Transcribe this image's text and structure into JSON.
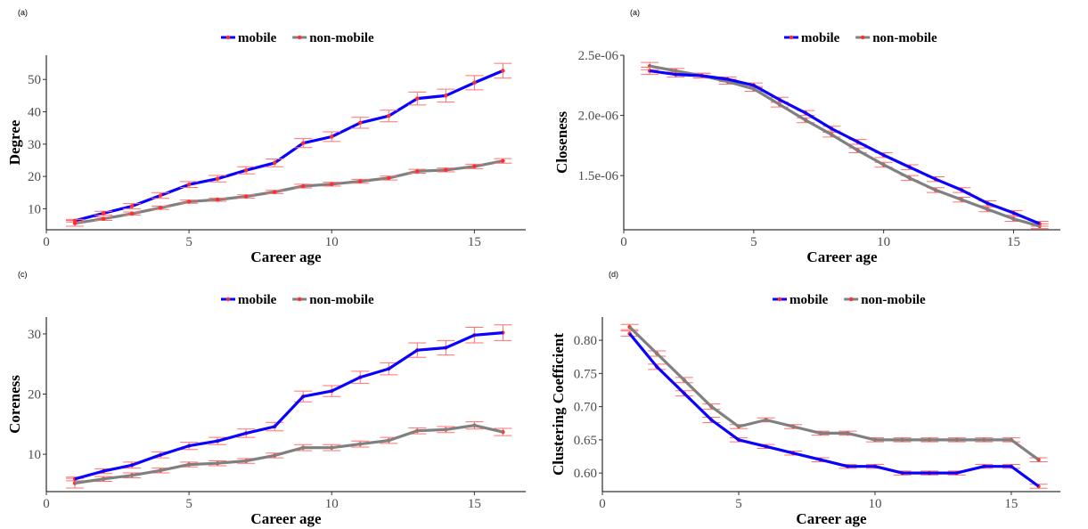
{
  "colors": {
    "mobile": "#0a00ff",
    "non_mobile": "#808080",
    "point": "#ff2d2d",
    "errorbar": "#ff7070"
  },
  "chart_data": [
    {
      "type": "line",
      "panel_label": "(a)",
      "xlabel": "Career age",
      "ylabel": "Degree",
      "x": [
        1,
        2,
        3,
        4,
        5,
        6,
        7,
        8,
        9,
        10,
        11,
        12,
        13,
        14,
        15,
        16
      ],
      "xlim": [
        0,
        16.8
      ],
      "ylim": [
        3.5,
        57.5
      ],
      "xticks": [
        0,
        5,
        10,
        15
      ],
      "xtick_labels": [
        "0",
        "5",
        "10",
        "15"
      ],
      "yticks": [
        10,
        20,
        30,
        40,
        50
      ],
      "ytick_labels": [
        "10",
        "20",
        "30",
        "40",
        "50"
      ],
      "legend_position": "top",
      "series": [
        {
          "name": "mobile",
          "values": [
            6.3,
            8.6,
            10.8,
            14.1,
            17.5,
            19.3,
            21.9,
            24.2,
            30.3,
            32.3,
            36.6,
            38.7,
            44.1,
            45.0,
            49.0,
            52.7
          ],
          "err": [
            0.4,
            0.6,
            0.8,
            0.9,
            0.9,
            1.0,
            1.1,
            1.2,
            1.4,
            1.5,
            1.7,
            1.8,
            2.0,
            2.0,
            2.2,
            2.3
          ]
        },
        {
          "name": "non-mobile",
          "values": [
            5.5,
            6.9,
            8.5,
            10.3,
            12.2,
            12.8,
            13.8,
            15.2,
            17.0,
            17.6,
            18.5,
            19.5,
            21.6,
            22.0,
            23.1,
            24.8
          ],
          "err": [
            0.9,
            0.5,
            0.5,
            0.5,
            0.5,
            0.5,
            0.5,
            0.5,
            0.6,
            0.6,
            0.6,
            0.6,
            0.6,
            0.6,
            0.7,
            0.7
          ]
        }
      ]
    },
    {
      "type": "line",
      "panel_label": "(a)",
      "xlabel": "Career age",
      "ylabel": "Closeness",
      "x": [
        1,
        2,
        3,
        4,
        5,
        6,
        7,
        8,
        9,
        10,
        11,
        12,
        13,
        14,
        15,
        16
      ],
      "xlim": [
        0,
        16.8
      ],
      "ylim": [
        1.05e-06,
        2.5e-06
      ],
      "xticks": [
        0,
        5,
        10,
        15
      ],
      "xtick_labels": [
        "0",
        "5",
        "10",
        "15"
      ],
      "yticks": [
        1.5e-06,
        2e-06,
        2.5e-06
      ],
      "ytick_labels": [
        "1.5e-06",
        "2.0e-06",
        "2.5e-06"
      ],
      "legend_position": "top",
      "series": [
        {
          "name": "mobile",
          "values": [
            2.37e-06,
            2.34e-06,
            2.33e-06,
            2.3e-06,
            2.25e-06,
            2.13e-06,
            2.02e-06,
            1.89e-06,
            1.78e-06,
            1.67e-06,
            1.57e-06,
            1.47e-06,
            1.38e-06,
            1.27e-06,
            1.19e-06,
            1.1e-06
          ],
          "err": [
            3e-08,
            2e-08,
            2e-08,
            2e-08,
            2e-08,
            2e-08,
            2e-08,
            2e-08,
            2e-08,
            2e-08,
            2e-08,
            2e-08,
            2e-08,
            2e-08,
            2e-08,
            2e-08
          ]
        },
        {
          "name": "non-mobile",
          "values": [
            2.41e-06,
            2.37e-06,
            2.33e-06,
            2.28e-06,
            2.22e-06,
            2.09e-06,
            1.96e-06,
            1.84e-06,
            1.71e-06,
            1.59e-06,
            1.48e-06,
            1.38e-06,
            1.3e-06,
            1.22e-06,
            1.14e-06,
            1.08e-06
          ],
          "err": [
            3e-08,
            2e-08,
            2e-08,
            2e-08,
            2e-08,
            2e-08,
            2e-08,
            2e-08,
            2e-08,
            2e-08,
            2e-08,
            2e-08,
            2e-08,
            2e-08,
            2e-08,
            2e-08
          ]
        }
      ]
    },
    {
      "type": "line",
      "panel_label": "(c)",
      "xlabel": "Career age",
      "ylabel": "Coreness",
      "x": [
        1,
        2,
        3,
        4,
        5,
        6,
        7,
        8,
        9,
        10,
        11,
        12,
        13,
        14,
        15,
        16
      ],
      "xlim": [
        0,
        16.8
      ],
      "ylim": [
        3.8,
        32.8
      ],
      "xticks": [
        0,
        5,
        10,
        15
      ],
      "xtick_labels": [
        "0",
        "5",
        "10",
        "15"
      ],
      "yticks": [
        10,
        20,
        30
      ],
      "ytick_labels": [
        "10",
        "20",
        "30"
      ],
      "legend_position": "top",
      "series": [
        {
          "name": "mobile",
          "values": [
            5.9,
            7.2,
            8.2,
            9.9,
            11.4,
            12.2,
            13.5,
            14.6,
            19.6,
            20.5,
            22.8,
            24.2,
            27.3,
            27.7,
            29.8,
            30.2
          ],
          "err": [
            0.3,
            0.4,
            0.5,
            0.5,
            0.6,
            0.6,
            0.7,
            0.7,
            0.9,
            0.9,
            1.0,
            1.0,
            1.2,
            1.2,
            1.3,
            1.3
          ]
        },
        {
          "name": "non-mobile",
          "values": [
            5.2,
            5.9,
            6.5,
            7.3,
            8.3,
            8.5,
            8.9,
            9.8,
            11.1,
            11.1,
            11.7,
            12.3,
            13.9,
            14.1,
            14.8,
            13.7
          ],
          "err": [
            0.8,
            0.4,
            0.4,
            0.4,
            0.4,
            0.4,
            0.4,
            0.4,
            0.5,
            0.5,
            0.5,
            0.5,
            0.5,
            0.5,
            0.6,
            0.6
          ]
        }
      ]
    },
    {
      "type": "line",
      "panel_label": "(d)",
      "xlabel": "Career age",
      "ylabel": "Clustering Coefficient",
      "x": [
        1,
        2,
        3,
        4,
        5,
        6,
        7,
        8,
        9,
        10,
        11,
        12,
        13,
        14,
        15,
        16
      ],
      "xlim": [
        0,
        16.8
      ],
      "ylim": [
        0.572,
        0.835
      ],
      "xticks": [
        0,
        5,
        10,
        15
      ],
      "xtick_labels": [
        "0",
        "5",
        "10",
        "15"
      ],
      "yticks": [
        0.6,
        0.65,
        0.7,
        0.75,
        0.8
      ],
      "ytick_labels": [
        "0.60",
        "0.65",
        "0.70",
        "0.75",
        "0.80"
      ],
      "legend_position": "top",
      "series": [
        {
          "name": "mobile",
          "values": [
            0.81,
            0.76,
            0.72,
            0.68,
            0.65,
            0.64,
            0.63,
            0.62,
            0.61,
            0.61,
            0.6,
            0.6,
            0.6,
            0.61,
            0.61,
            0.58
          ],
          "err": [
            0.004,
            0.004,
            0.004,
            0.004,
            0.003,
            0.003,
            0.003,
            0.003,
            0.003,
            0.003,
            0.003,
            0.003,
            0.003,
            0.003,
            0.003,
            0.003
          ]
        },
        {
          "name": "non-mobile",
          "values": [
            0.82,
            0.78,
            0.74,
            0.7,
            0.67,
            0.68,
            0.67,
            0.66,
            0.66,
            0.65,
            0.65,
            0.65,
            0.65,
            0.65,
            0.65,
            0.62
          ],
          "err": [
            0.004,
            0.004,
            0.004,
            0.004,
            0.003,
            0.003,
            0.003,
            0.003,
            0.003,
            0.003,
            0.003,
            0.003,
            0.003,
            0.003,
            0.003,
            0.003
          ]
        }
      ]
    }
  ]
}
